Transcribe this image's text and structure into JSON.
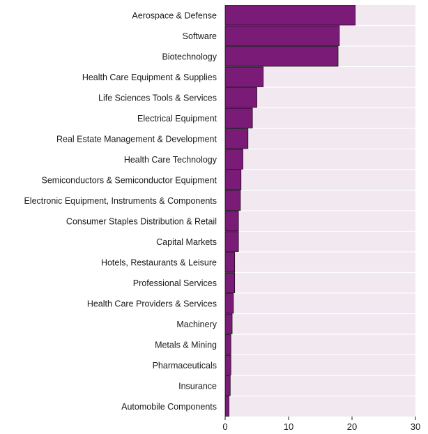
{
  "colors": {
    "plot_background": "#f1e8f0",
    "bar_fill": "#7a1b77",
    "bar_edge": "#1a0a1a",
    "gridline": "#ffffff",
    "text": "#1a1a1a"
  },
  "chart_data": {
    "type": "bar",
    "orientation": "horizontal",
    "title": "",
    "xlabel": "",
    "ylabel": "",
    "categories": [
      "Aerospace & Defense",
      "Software",
      "Biotechnology",
      "Health Care Equipment & Supplies",
      "Life Sciences Tools & Services",
      "Electrical Equipment",
      "Real Estate Management & Development",
      "Health Care Technology",
      "Semiconductors & Semiconductor Equipment",
      "Electronic Equipment, Instruments & Components",
      "Consumer Staples Distribution & Retail",
      "Capital Markets",
      "Hotels, Restaurants & Leisure",
      "Professional Services",
      "Health Care Providers & Services",
      "Machinery",
      "Metals & Mining",
      "Pharmaceuticals",
      "Insurance",
      "Automobile Components"
    ],
    "values": [
      20.5,
      18.0,
      17.8,
      6.0,
      5.0,
      4.3,
      3.6,
      2.8,
      2.5,
      2.4,
      2.1,
      2.1,
      1.5,
      1.5,
      1.3,
      1.1,
      0.9,
      0.9,
      0.8,
      0.6
    ],
    "xlim": [
      0,
      30
    ],
    "x_ticks": [
      0,
      10,
      20,
      30
    ],
    "x_tick_labels": [
      "0",
      "10",
      "20",
      "30"
    ],
    "grid": "horizontal gridlines between categories",
    "legend": "none"
  }
}
